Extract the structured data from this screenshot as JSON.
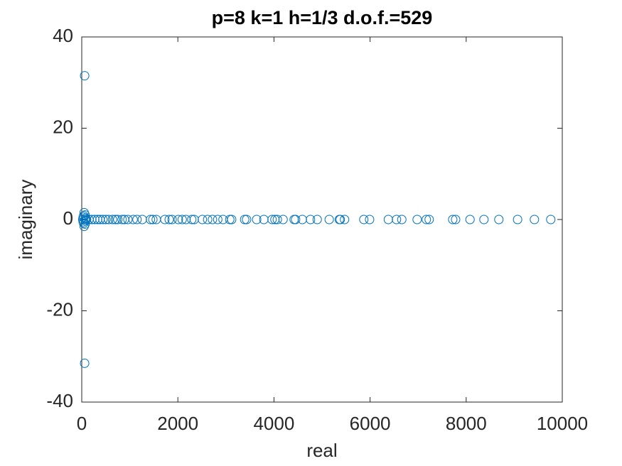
{
  "chart_data": {
    "type": "scatter",
    "title": "p=8 k=1 h=1/3 d.o.f.=529",
    "x_label": "real",
    "y_label": "imaginary",
    "color": "#0072bd",
    "x": [
      60,
      60,
      50,
      50,
      70,
      70,
      30,
      30,
      80,
      80,
      20,
      40,
      40,
      100,
      70,
      100,
      150,
      210,
      270,
      330,
      380,
      440,
      500,
      560,
      640,
      700,
      750,
      840,
      890,
      960,
      1070,
      1150,
      1260,
      1430,
      1480,
      1550,
      1730,
      1820,
      1880,
      2010,
      2090,
      2170,
      2290,
      2340,
      2510,
      2620,
      2720,
      2830,
      2940,
      3080,
      3120,
      3390,
      3430,
      3640,
      3790,
      3960,
      4020,
      4070,
      4190,
      4420,
      4450,
      4590,
      4760,
      4900,
      5150,
      5360,
      5380,
      5470,
      5870,
      5990,
      6380,
      6550,
      6660,
      6980,
      7170,
      7230,
      7720,
      7780,
      8080,
      8370,
      8680,
      9070,
      9420,
      9760
    ],
    "y": [
      31.5,
      -31.5,
      1.5,
      -1.5,
      1,
      -1,
      0.5,
      -0.5,
      0.3,
      -0.3,
      0,
      0.8,
      -0.8,
      0,
      0,
      0,
      0,
      0,
      0,
      0,
      0,
      0,
      0,
      0,
      0,
      0,
      0,
      0,
      0,
      0,
      0,
      0,
      0,
      0,
      0,
      0,
      0,
      0,
      0,
      0,
      0,
      0,
      0,
      0,
      0,
      0,
      0,
      0,
      0,
      0,
      0,
      0,
      0,
      0,
      0,
      0,
      0,
      0,
      0,
      0,
      0,
      0,
      0,
      0,
      0,
      0,
      0,
      0,
      0,
      0,
      0,
      0,
      0,
      0,
      0,
      0,
      0,
      0,
      0,
      0,
      0,
      0,
      0,
      0
    ],
    "xlim": [
      0,
      10000
    ],
    "xticks": [
      0,
      2000,
      4000,
      6000,
      8000,
      10000
    ],
    "ylim": [
      -40,
      40
    ],
    "yticks": [
      -40,
      -20,
      0,
      20,
      40
    ]
  }
}
